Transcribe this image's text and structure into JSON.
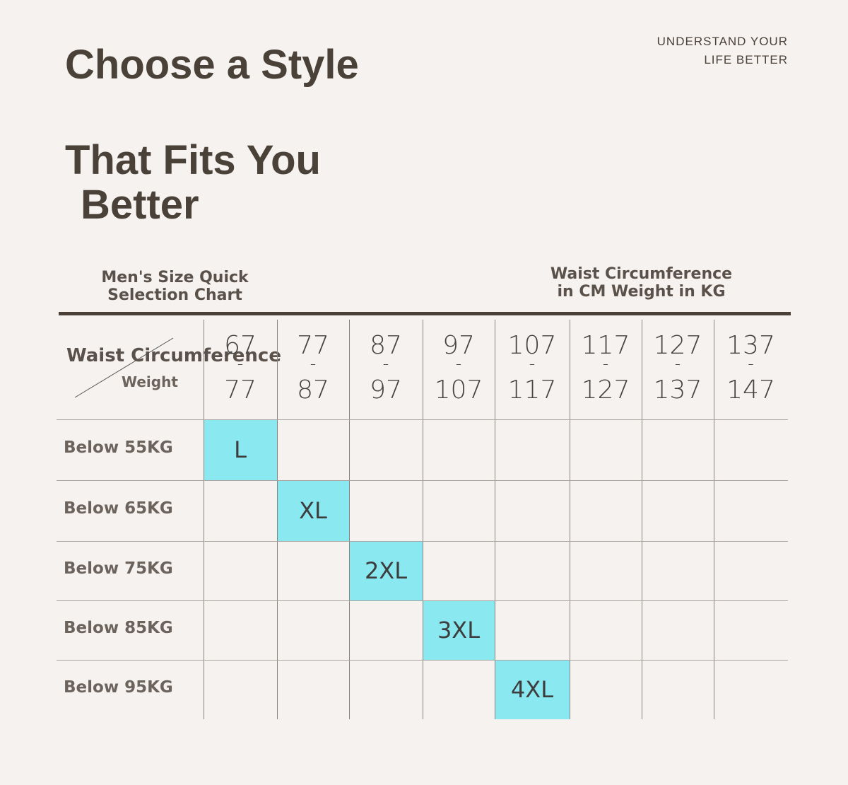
{
  "header": {
    "title_lines": [
      "Choose a Style",
      "That Fits You",
      "Better"
    ],
    "tagline": [
      "UNDERSTAND YOUR",
      "LIFE BETTER"
    ]
  },
  "subheader": {
    "left": [
      "Men's Size Quick",
      "Selection Chart"
    ],
    "right": [
      "Waist Circumference",
      "in CM Weight in KG"
    ]
  },
  "table": {
    "corner": {
      "columns_label": "Waist Circumference",
      "rows_label": "Weight"
    },
    "columns": [
      {
        "from": 67,
        "sep": "-",
        "to": 77
      },
      {
        "from": 77,
        "sep": "-",
        "to": 87
      },
      {
        "from": 87,
        "sep": "-",
        "to": 97
      },
      {
        "from": 97,
        "sep": "-",
        "to": 107
      },
      {
        "from": 107,
        "sep": "-",
        "to": 117
      },
      {
        "from": 117,
        "sep": "-",
        "to": 127
      },
      {
        "from": 127,
        "sep": "-",
        "to": 137
      },
      {
        "from": 137,
        "sep": "-",
        "to": 147
      }
    ],
    "rows": [
      {
        "label": "Below 55KG",
        "cells": [
          "L",
          null,
          null,
          null,
          null,
          null,
          null,
          null
        ]
      },
      {
        "label": "Below 65KG",
        "cells": [
          null,
          "XL",
          null,
          null,
          null,
          null,
          null,
          null
        ]
      },
      {
        "label": "Below 75KG",
        "cells": [
          null,
          null,
          "2XL",
          null,
          null,
          null,
          null,
          null
        ]
      },
      {
        "label": "Below 85KG",
        "cells": [
          null,
          null,
          null,
          "3XL",
          null,
          null,
          null,
          null
        ]
      },
      {
        "label": "Below 95KG",
        "cells": [
          null,
          null,
          null,
          null,
          "4XL",
          null,
          null,
          null
        ]
      }
    ]
  }
}
